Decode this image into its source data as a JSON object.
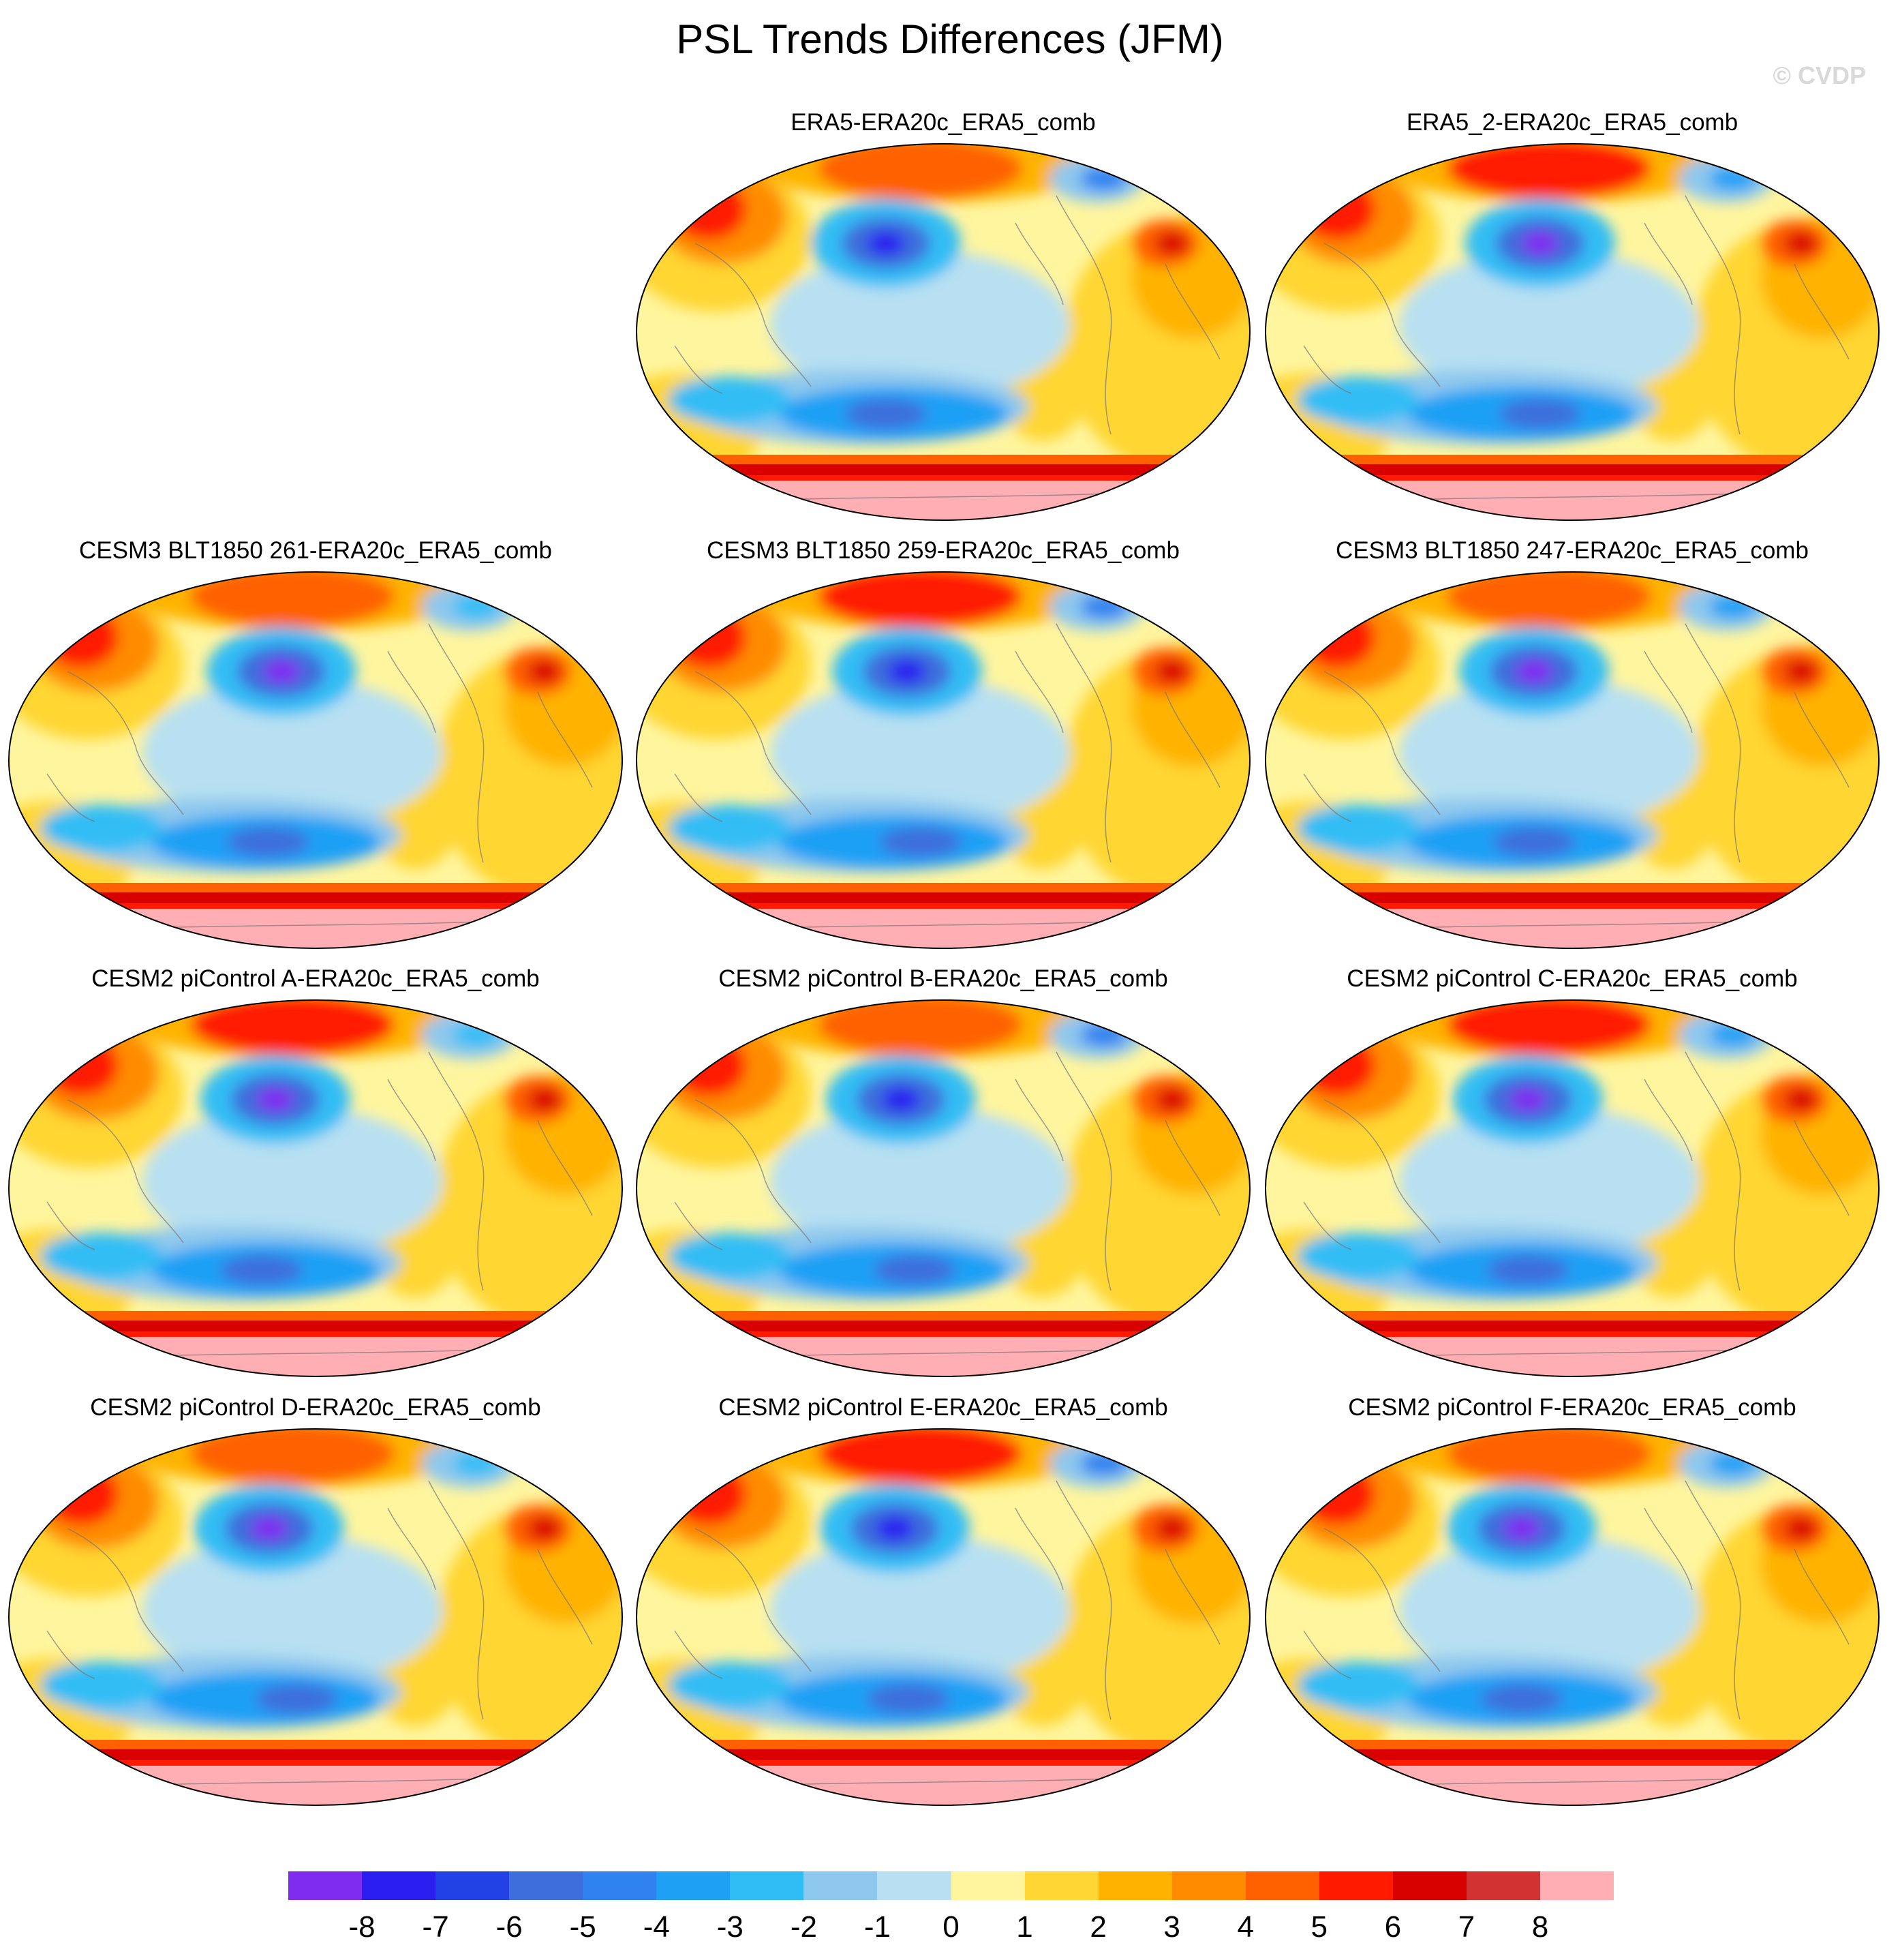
{
  "title": "PSL Trends Differences (JFM)",
  "watermark": "© CVDP",
  "panels": [
    {
      "label": "ERA5-ERA20c_ERA5_comb",
      "row": 0,
      "col": 1
    },
    {
      "label": "ERA5_2-ERA20c_ERA5_comb",
      "row": 0,
      "col": 2
    },
    {
      "label": "CESM3 BLT1850 261-ERA20c_ERA5_comb",
      "row": 1,
      "col": 0
    },
    {
      "label": "CESM3 BLT1850 259-ERA20c_ERA5_comb",
      "row": 1,
      "col": 1
    },
    {
      "label": "CESM3 BLT1850 247-ERA20c_ERA5_comb",
      "row": 1,
      "col": 2
    },
    {
      "label": "CESM2 piControl A-ERA20c_ERA5_comb",
      "row": 2,
      "col": 0
    },
    {
      "label": "CESM2 piControl B-ERA20c_ERA5_comb",
      "row": 2,
      "col": 1
    },
    {
      "label": "CESM2 piControl C-ERA20c_ERA5_comb",
      "row": 2,
      "col": 2
    },
    {
      "label": "CESM2 piControl D-ERA20c_ERA5_comb",
      "row": 3,
      "col": 0
    },
    {
      "label": "CESM2 piControl E-ERA20c_ERA5_comb",
      "row": 3,
      "col": 1
    },
    {
      "label": "CESM2 piControl F-ERA20c_ERA5_comb",
      "row": 3,
      "col": 2
    }
  ],
  "colorbar": {
    "labels": [
      "-8",
      "-7",
      "-6",
      "-5",
      "-4",
      "-3",
      "-2",
      "-1",
      "0",
      "1",
      "2",
      "3",
      "4",
      "5",
      "6",
      "7",
      "8"
    ],
    "colors": [
      "#7f2bf0",
      "#2a1ff0",
      "#2342e6",
      "#3e6edc",
      "#2f82f0",
      "#1ea0f5",
      "#30bdf5",
      "#8ec8ee",
      "#b8e0f2",
      "#fff59e",
      "#ffd633",
      "#ffb300",
      "#ff8c00",
      "#ff6000",
      "#ff1a00",
      "#d90000",
      "#d23232",
      "#ffaeb4"
    ]
  }
}
